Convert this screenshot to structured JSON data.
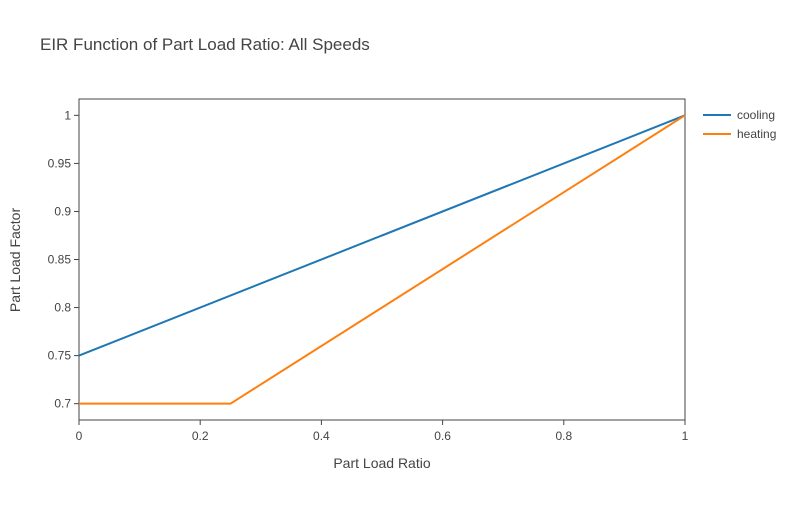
{
  "chart_data": {
    "type": "line",
    "title": "EIR Function of Part Load Ratio: All Speeds",
    "xlabel": "Part Load Ratio",
    "ylabel": "Part Load Factor",
    "xlim": [
      0,
      1
    ],
    "ylim": [
      0.683,
      1.017
    ],
    "x_ticks": [
      0,
      0.2,
      0.4,
      0.6,
      0.8,
      1
    ],
    "x_tick_labels": [
      "0",
      "0.2",
      "0.4",
      "0.6",
      "0.8",
      "1"
    ],
    "y_ticks": [
      0.7,
      0.75,
      0.8,
      0.85,
      0.9,
      0.95,
      1
    ],
    "y_tick_labels": [
      "0.7",
      "0.75",
      "0.8",
      "0.85",
      "0.9",
      "0.95",
      "1"
    ],
    "grid": false,
    "legend_position": "top-right",
    "series": [
      {
        "name": "cooling",
        "color": "#1f77b4",
        "x": [
          0,
          1
        ],
        "y": [
          0.75,
          1.0
        ]
      },
      {
        "name": "heating",
        "color": "#ff7f0e",
        "x": [
          0,
          0.25,
          1
        ],
        "y": [
          0.7,
          0.7,
          1.0
        ]
      }
    ]
  }
}
